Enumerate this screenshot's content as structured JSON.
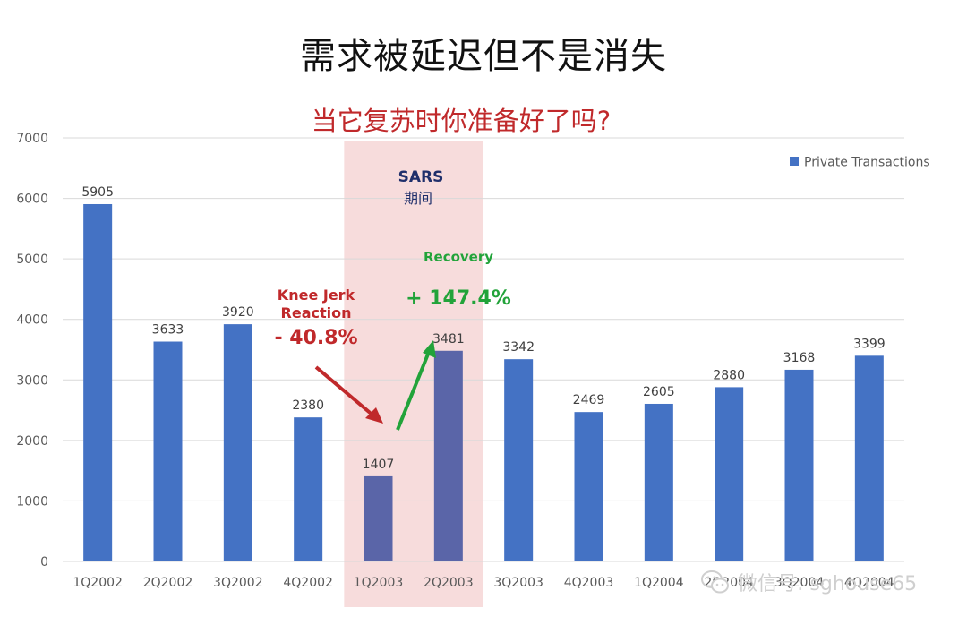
{
  "title": "需求被延迟但不是消失",
  "subtitle": "当它复苏时你准备好了吗?",
  "chart_data": {
    "type": "bar",
    "categories": [
      "1Q2002",
      "2Q2002",
      "3Q2002",
      "4Q2002",
      "1Q2003",
      "2Q2003",
      "3Q2003",
      "4Q2003",
      "1Q2004",
      "2Q2004",
      "3Q2004",
      "4Q2004"
    ],
    "series": [
      {
        "name": "Private Transactions",
        "values": [
          5905,
          3633,
          3920,
          2380,
          1407,
          3481,
          3342,
          2469,
          2605,
          2880,
          3168,
          3399
        ]
      }
    ],
    "data_labels": [
      "5905",
      "3633",
      "3920",
      "2380",
      "1407",
      "3481",
      "3342",
      "2469",
      "2605",
      "2880",
      "3168",
      "3399"
    ],
    "ylim": [
      0,
      7000
    ],
    "yticks": [
      0,
      1000,
      2000,
      3000,
      4000,
      5000,
      6000,
      7000
    ],
    "ytick_labels": [
      "0",
      "1000",
      "2000",
      "3000",
      "4000",
      "5000",
      "6000",
      "7000"
    ],
    "grid": true,
    "legend_position": "top-right",
    "bar_color": "#4472c4",
    "highlight_bar_color": "#5a65a8",
    "highlight_band": {
      "from_category": "1Q2003",
      "to_category": "2Q2003",
      "color": "#f7dcdc"
    },
    "annotations": {
      "sars": {
        "line1": "SARS",
        "line2": "期间",
        "color": "#1f2f6b"
      },
      "knee_jerk": {
        "line1": "Knee Jerk",
        "line2": "Reaction",
        "value": "- 40.8%",
        "color": "#c0292b"
      },
      "recovery": {
        "label": "Recovery",
        "value": "+ 147.4%",
        "color": "#22a33a"
      }
    }
  },
  "watermark": {
    "text": "微信号: sghouse65",
    "icon": "wechat-icon"
  }
}
